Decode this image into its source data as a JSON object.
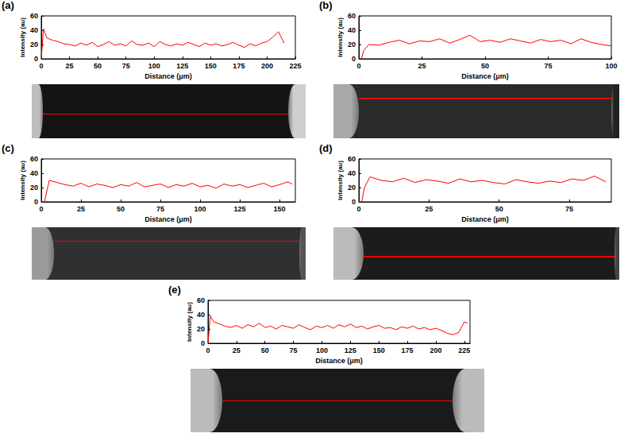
{
  "chart_data": [
    {
      "type": "line",
      "title": "(a)",
      "x_label": "Distance (μm)",
      "y_label": "Intensity (au)",
      "color": "#ff0000",
      "grid": false,
      "x": [
        0,
        2,
        5,
        10,
        15,
        20,
        25,
        30,
        35,
        40,
        45,
        50,
        55,
        60,
        65,
        70,
        75,
        80,
        85,
        90,
        95,
        100,
        105,
        110,
        115,
        120,
        125,
        130,
        135,
        140,
        145,
        150,
        155,
        160,
        165,
        170,
        175,
        180,
        185,
        190,
        195,
        200,
        205,
        210,
        215
      ],
      "values": [
        0,
        42,
        29,
        26,
        24,
        21,
        20,
        18,
        22,
        19,
        23,
        17,
        20,
        24,
        19,
        21,
        18,
        25,
        20,
        19,
        22,
        17,
        24,
        20,
        18,
        21,
        19,
        23,
        20,
        17,
        22,
        19,
        21,
        18,
        20,
        23,
        19,
        16,
        21,
        18,
        22,
        24,
        30,
        38,
        22
      ],
      "xlim": [
        0,
        225
      ],
      "xticks": [
        0,
        25,
        50,
        75,
        100,
        125,
        150,
        175,
        200,
        225
      ],
      "ylim": [
        0,
        60
      ],
      "yticks": [
        0,
        20,
        40,
        60
      ]
    },
    {
      "type": "line",
      "title": "(b)",
      "x_label": "Distance (μm)",
      "y_label": "Intensity (au)",
      "color": "#ff0000",
      "grid": false,
      "x": [
        0,
        1,
        2,
        4,
        8,
        12,
        16,
        20,
        24,
        28,
        32,
        36,
        40,
        44,
        48,
        52,
        56,
        60,
        64,
        68,
        72,
        76,
        80,
        84,
        88,
        92,
        96,
        100
      ],
      "values": [
        0,
        0,
        12,
        20,
        19,
        23,
        26,
        21,
        25,
        24,
        28,
        22,
        27,
        33,
        24,
        26,
        23,
        28,
        25,
        22,
        27,
        24,
        26,
        21,
        28,
        23,
        20,
        18
      ],
      "xlim": [
        0,
        100
      ],
      "xticks": [
        0,
        25,
        50,
        75,
        100
      ],
      "ylim": [
        0,
        60
      ],
      "yticks": [
        0,
        20,
        40,
        60
      ]
    },
    {
      "type": "line",
      "title": "(c)",
      "x_label": "Distance (μm)",
      "y_label": "Intensity (au)",
      "color": "#ff0000",
      "grid": false,
      "x": [
        0,
        2,
        5,
        10,
        15,
        20,
        25,
        30,
        35,
        40,
        45,
        50,
        55,
        60,
        65,
        70,
        75,
        80,
        85,
        90,
        95,
        100,
        105,
        110,
        115,
        120,
        125,
        130,
        135,
        140,
        145,
        150,
        155,
        158
      ],
      "values": [
        0,
        0,
        30,
        27,
        24,
        22,
        26,
        21,
        25,
        23,
        20,
        24,
        22,
        27,
        21,
        23,
        25,
        20,
        24,
        22,
        26,
        21,
        23,
        19,
        25,
        22,
        24,
        20,
        23,
        26,
        21,
        24,
        28,
        25
      ],
      "xlim": [
        0,
        160
      ],
      "xticks": [
        0,
        25,
        50,
        75,
        100,
        125,
        150
      ],
      "ylim": [
        0,
        60
      ],
      "yticks": [
        0,
        20,
        40,
        60
      ]
    },
    {
      "type": "line",
      "title": "(d)",
      "x_label": "Distance (μm)",
      "y_label": "Intensity (au)",
      "color": "#ff0000",
      "grid": false,
      "x": [
        0,
        1,
        2,
        4,
        8,
        12,
        16,
        20,
        24,
        28,
        32,
        36,
        40,
        44,
        48,
        52,
        56,
        60,
        64,
        68,
        72,
        76,
        80,
        84,
        88
      ],
      "values": [
        0,
        0,
        20,
        35,
        30,
        28,
        33,
        27,
        31,
        29,
        26,
        32,
        28,
        30,
        27,
        25,
        31,
        28,
        26,
        29,
        27,
        32,
        30,
        36,
        28
      ],
      "xlim": [
        0,
        90
      ],
      "xticks": [
        0,
        25,
        50,
        75
      ],
      "ylim": [
        0,
        60
      ],
      "yticks": [
        0,
        20,
        40,
        60
      ]
    },
    {
      "type": "line",
      "title": "(e)",
      "x_label": "Distance (μm)",
      "y_label": "Intensity (au)",
      "color": "#ff0000",
      "grid": false,
      "x": [
        0,
        2,
        5,
        10,
        15,
        20,
        25,
        30,
        35,
        40,
        45,
        50,
        55,
        60,
        65,
        70,
        75,
        80,
        85,
        90,
        95,
        100,
        105,
        110,
        115,
        120,
        125,
        130,
        135,
        140,
        145,
        150,
        155,
        160,
        165,
        170,
        175,
        180,
        185,
        190,
        195,
        200,
        205,
        210,
        215,
        220,
        225,
        228
      ],
      "values": [
        0,
        38,
        30,
        27,
        24,
        22,
        25,
        21,
        26,
        23,
        28,
        22,
        24,
        20,
        25,
        23,
        21,
        26,
        22,
        19,
        24,
        22,
        25,
        21,
        26,
        23,
        27,
        22,
        24,
        20,
        23,
        25,
        21,
        22,
        19,
        23,
        21,
        24,
        20,
        22,
        19,
        21,
        18,
        14,
        12,
        15,
        30,
        28
      ],
      "xlim": [
        0,
        230
      ],
      "xticks": [
        0,
        25,
        50,
        75,
        100,
        125,
        150,
        175,
        200,
        225
      ],
      "ylim": [
        0,
        60
      ],
      "yticks": [
        0,
        20,
        40,
        60
      ]
    }
  ]
}
